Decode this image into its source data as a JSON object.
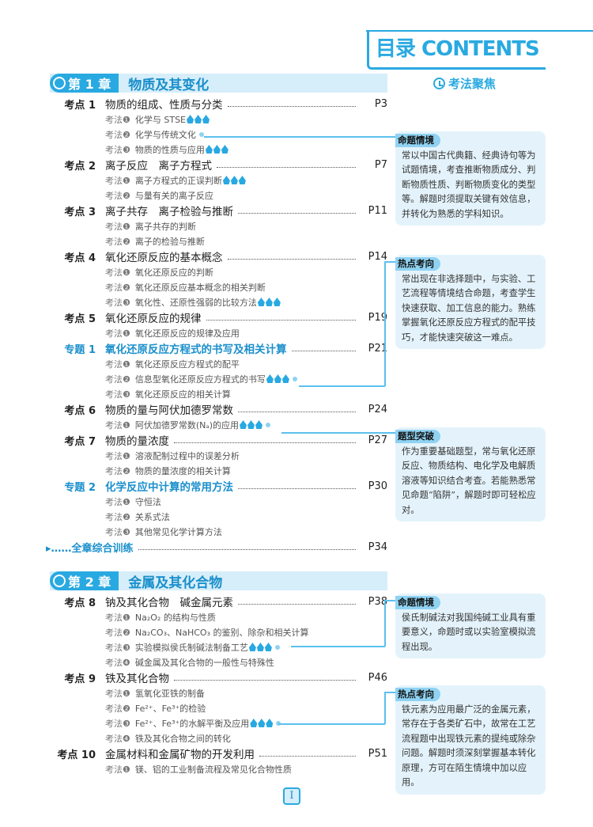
{
  "header": {
    "title": "目录 CONTENTS",
    "focus": "考法聚焦"
  },
  "accent": "#29a9e1",
  "chapters": [
    {
      "label": "第 1 章",
      "name": "物质及其变化",
      "entries": [
        {
          "k": "考点 1",
          "t": "物质的组成、性质与分类",
          "p": "P3",
          "subs": [
            {
              "m": "考法❶",
              "t": "化学与 STSE",
              "hot": true
            },
            {
              "m": "考法❷",
              "t": "化学与传统文化",
              "dot": true
            },
            {
              "m": "考法❸",
              "t": "物质的性质与应用",
              "hot": true
            }
          ]
        },
        {
          "k": "考点 2",
          "t": "离子反应　离子方程式",
          "p": "P7",
          "subs": [
            {
              "m": "考法❶",
              "t": "离子方程式的正误判断",
              "hot": true
            },
            {
              "m": "考法❷",
              "t": "与量有关的离子反应"
            }
          ]
        },
        {
          "k": "考点 3",
          "t": "离子共存　离子检验与推断",
          "p": "P11",
          "subs": [
            {
              "m": "考法❶",
              "t": "离子共存的判断"
            },
            {
              "m": "考法❷",
              "t": "离子的检验与推断"
            }
          ]
        },
        {
          "k": "考点 4",
          "t": "氧化还原反应的基本概念",
          "p": "P14",
          "subs": [
            {
              "m": "考法❶",
              "t": "氧化还原反应的判断"
            },
            {
              "m": "考法❷",
              "t": "氧化还原反应基本概念的相关判断"
            },
            {
              "m": "考法❸",
              "t": "氧化性、还原性强弱的比较方法",
              "hot": true
            }
          ]
        },
        {
          "k": "考点 5",
          "t": "氧化还原反应的规律",
          "p": "P19",
          "subs": [
            {
              "m": "考法❶",
              "t": "氧化还原反应的规律及应用"
            }
          ]
        },
        {
          "k": "专题 1",
          "t": "氧化还原反应方程式的书写及相关计算",
          "p": "P21",
          "special": true,
          "subs": [
            {
              "m": "考法❶",
              "t": "氧化还原反应方程式的配平"
            },
            {
              "m": "考法❷",
              "t": "信息型氧化还原反应方程式的书写",
              "hot": true,
              "dot": true
            },
            {
              "m": "考法❸",
              "t": "氧化还原反应的相关计算"
            }
          ]
        },
        {
          "k": "考点 6",
          "t": "物质的量与阿伏加德罗常数",
          "p": "P24",
          "subs": [
            {
              "m": "考法❶",
              "t": "阿伏加德罗常数(Nₐ)的应用",
              "hot": true,
              "dot": true
            }
          ]
        },
        {
          "k": "考点 7",
          "t": "物质的量浓度",
          "p": "P27",
          "subs": [
            {
              "m": "考法❶",
              "t": "溶液配制过程中的误差分析"
            },
            {
              "m": "考法❷",
              "t": "物质的量浓度的相关计算"
            }
          ]
        },
        {
          "k": "专题 2",
          "t": "化学反应中计算的常用方法",
          "p": "P30",
          "special": true,
          "subs": [
            {
              "m": "考法❶",
              "t": "守恒法"
            },
            {
              "m": "考法❷",
              "t": "关系式法"
            },
            {
              "m": "考法❸",
              "t": "其他常见化学计算方法"
            }
          ]
        }
      ],
      "final": {
        "t": "▸……全章综合训练",
        "p": "P34"
      }
    },
    {
      "label": "第 2 章",
      "name": "金属及其化合物",
      "entries": [
        {
          "k": "考点 8",
          "t": "钠及其化合物　碱金属元素",
          "p": "P38",
          "subs": [
            {
              "m": "考法❶",
              "t": "Na₂O₂ 的结构与性质"
            },
            {
              "m": "考法❷",
              "t": "Na₂CO₃、NaHCO₃ 的鉴别、除杂和相关计算"
            },
            {
              "m": "考法❸",
              "t": "实验模拟侯氏制碱法制备工艺",
              "hot": true,
              "dot": true
            },
            {
              "m": "考法❹",
              "t": "碱金属及其化合物的一般性与特殊性"
            }
          ]
        },
        {
          "k": "考点 9",
          "t": "铁及其化合物",
          "p": "P46",
          "subs": [
            {
              "m": "考法❶",
              "t": "氢氧化亚铁的制备"
            },
            {
              "m": "考法❷",
              "t": "Fe²⁺、Fe³⁺的检验"
            },
            {
              "m": "考法❸",
              "t": "Fe²⁺、Fe³⁺的水解平衡及应用",
              "hot": true,
              "dot": true
            },
            {
              "m": "考法❹",
              "t": "铁及其化合物之间的转化"
            }
          ]
        },
        {
          "k": "考点 10",
          "t": "金属材料和金属矿物的开发利用",
          "p": "P51",
          "subs": [
            {
              "m": "考法❶",
              "t": "镁、铝的工业制备流程及常见化合物性质"
            }
          ]
        }
      ]
    }
  ],
  "boxes": [
    {
      "label": "命题情境",
      "text": "常以中国古代典籍、经典诗句等为试题情境，考查推断物质成分、判断物质性质、判断物质变化的类型等。解题时须提取关键有效信息，并转化为熟悉的学科知识。"
    },
    {
      "label": "热点考向",
      "text": "常出现在非选择题中，与实验、工艺流程等情境结合命题，考查学生快速获取、加工信息的能力。熟练掌握氧化还原反应方程式的配平技巧，才能快速突破这一难点。"
    },
    {
      "label": "题型突破",
      "text": "作为重要基础题型，常与氧化还原反应、物质结构、电化学及电解质溶液等知识结合考查。若能熟悉常见命题“陷阱”，解题时即可轻松应对。"
    },
    {
      "label": "命题情境",
      "text": "侯氏制碱法对我国纯碱工业具有重要意义，命题时或以实验室模拟流程出现。"
    },
    {
      "label": "热点考向",
      "text": "铁元素为应用最广泛的金属元素，常存在于各类矿石中，故常在工艺流程题中出现铁元素的提纯或除杂问题。解题时须深刻掌握基本转化原理，方可在陌生情境中加以应用。"
    }
  ],
  "page_number": "I"
}
